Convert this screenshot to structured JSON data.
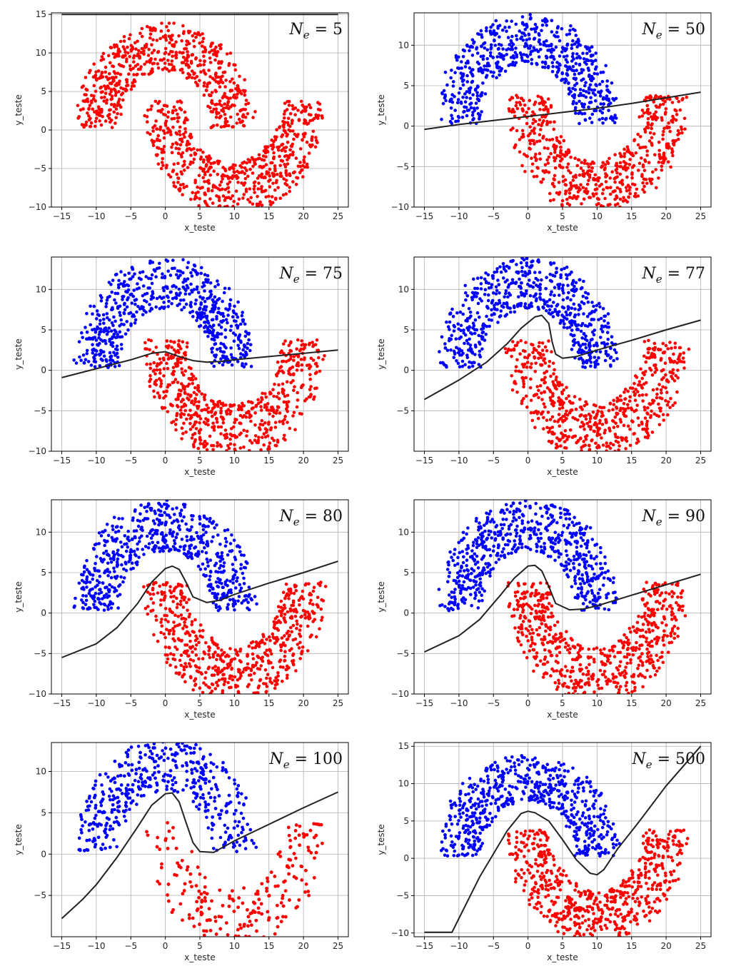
{
  "chart_data": [
    {
      "type": "scatter",
      "annotation": {
        "symbol": "N",
        "sub": "e",
        "value": "5"
      },
      "xlabel": "x_teste",
      "ylabel": "y_teste",
      "xlim": [
        -16.5,
        26.5
      ],
      "ylim": [
        -10,
        15.2
      ],
      "xticks": [
        -15,
        -10,
        -5,
        0,
        5,
        10,
        15,
        20,
        25
      ],
      "yticks": [
        -10,
        -5,
        0,
        5,
        10,
        15
      ],
      "grid": true,
      "classes": {
        "upper_moon": "red",
        "lower_moon": "red"
      },
      "moon_colors": {
        "upper": "#ff0000",
        "lower": "#ff0000"
      },
      "boundary": {
        "x": [
          -15,
          25
        ],
        "y": [
          15,
          15
        ]
      }
    },
    {
      "type": "scatter",
      "annotation": {
        "symbol": "N",
        "sub": "e",
        "value": "50"
      },
      "xlabel": "x_teste",
      "ylabel": "y_teste",
      "xlim": [
        -16.5,
        26.5
      ],
      "ylim": [
        -10,
        14
      ],
      "xticks": [
        -15,
        -10,
        -5,
        0,
        5,
        10,
        15,
        20,
        25
      ],
      "yticks": [
        -10,
        -5,
        0,
        5,
        10
      ],
      "grid": true,
      "classes": {
        "upper_moon": "blue",
        "lower_moon": "red"
      },
      "moon_colors": {
        "upper": "#0000ff",
        "lower": "#ff0000"
      },
      "boundary": {
        "x": [
          -15,
          -10,
          -5,
          0,
          5,
          10,
          15,
          20,
          25
        ],
        "y": [
          -0.4,
          0.2,
          0.7,
          1.2,
          1.7,
          2.2,
          2.8,
          3.5,
          4.2
        ]
      }
    },
    {
      "type": "scatter",
      "annotation": {
        "symbol": "N",
        "sub": "e",
        "value": "75"
      },
      "xlabel": "x_teste",
      "ylabel": "y_teste",
      "xlim": [
        -16.5,
        26.5
      ],
      "ylim": [
        -10,
        14
      ],
      "xticks": [
        -15,
        -10,
        -5,
        0,
        5,
        10,
        15,
        20,
        25
      ],
      "yticks": [
        -10,
        -5,
        0,
        5,
        10
      ],
      "grid": true,
      "classes": {
        "upper_moon": "blue",
        "lower_moon": "red"
      },
      "moon_colors": {
        "upper": "#0000ff",
        "lower": "#ff0000"
      },
      "boundary": {
        "x": [
          -15,
          -10,
          -5,
          -2,
          0,
          2,
          4,
          6,
          8,
          10,
          15,
          20,
          25
        ],
        "y": [
          -0.9,
          0.2,
          1.3,
          2.1,
          2.3,
          1.7,
          1.2,
          1.0,
          1.1,
          1.3,
          1.7,
          2.1,
          2.5
        ]
      }
    },
    {
      "type": "scatter",
      "annotation": {
        "symbol": "N",
        "sub": "e",
        "value": "77"
      },
      "xlabel": "x_teste",
      "ylabel": "y_teste",
      "xlim": [
        -16.5,
        26.5
      ],
      "ylim": [
        -10,
        14
      ],
      "xticks": [
        -15,
        -10,
        -5,
        0,
        5,
        10,
        15,
        20,
        25
      ],
      "yticks": [
        -5,
        0,
        5,
        10
      ],
      "grid": true,
      "classes": {
        "upper_moon": "blue",
        "lower_moon": "red"
      },
      "moon_colors": {
        "upper": "#0000ff",
        "lower": "#ff0000"
      },
      "boundary": {
        "x": [
          -15,
          -10,
          -6,
          -3,
          -1,
          1,
          2,
          3,
          3.5,
          4,
          5,
          7,
          10,
          15,
          20,
          25
        ],
        "y": [
          -3.6,
          -1.2,
          1.0,
          3.3,
          5.2,
          6.6,
          6.8,
          5.8,
          3.5,
          2.0,
          1.5,
          1.7,
          2.5,
          3.7,
          5.0,
          6.2
        ]
      }
    },
    {
      "type": "scatter",
      "annotation": {
        "symbol": "N",
        "sub": "e",
        "value": "80"
      },
      "xlabel": "x_teste",
      "ylabel": "y_teste",
      "xlim": [
        -16.5,
        26.5
      ],
      "ylim": [
        -10,
        14
      ],
      "xticks": [
        -15,
        -10,
        -5,
        0,
        5,
        10,
        15,
        20,
        25
      ],
      "yticks": [
        -10,
        -5,
        0,
        5,
        10
      ],
      "grid": true,
      "classes": {
        "upper_moon": "blue",
        "lower_moon": "red"
      },
      "moon_colors": {
        "upper": "#0000ff",
        "lower": "#ff0000"
      },
      "boundary": {
        "x": [
          -15,
          -10,
          -7,
          -4,
          -2,
          0,
          1,
          2,
          3,
          4,
          6,
          8,
          10,
          15,
          20,
          25
        ],
        "y": [
          -5.5,
          -3.8,
          -1.8,
          1.2,
          3.8,
          5.5,
          5.8,
          5.4,
          3.8,
          2.0,
          1.3,
          1.6,
          2.3,
          3.7,
          5.0,
          6.4
        ]
      }
    },
    {
      "type": "scatter",
      "annotation": {
        "symbol": "N",
        "sub": "e",
        "value": "90"
      },
      "xlabel": "x_teste",
      "ylabel": "y_teste",
      "xlim": [
        -16.5,
        26.5
      ],
      "ylim": [
        -10,
        14
      ],
      "xticks": [
        -15,
        -10,
        -5,
        0,
        5,
        10,
        15,
        20,
        25
      ],
      "yticks": [
        -10,
        -5,
        0,
        5,
        10
      ],
      "grid": true,
      "classes": {
        "upper_moon": "blue",
        "lower_moon": "red"
      },
      "moon_colors": {
        "upper": "#0000ff",
        "lower": "#ff0000"
      },
      "boundary": {
        "x": [
          -15,
          -10,
          -7,
          -4,
          -2,
          0,
          1,
          2,
          3,
          4,
          6,
          8,
          10,
          15,
          20,
          25
        ],
        "y": [
          -4.8,
          -2.8,
          -0.8,
          2.2,
          4.3,
          5.8,
          5.9,
          5.2,
          3.3,
          1.2,
          0.4,
          0.5,
          0.9,
          2.2,
          3.5,
          4.8
        ]
      }
    },
    {
      "type": "scatter",
      "annotation": {
        "symbol": "N",
        "sub": "e",
        "value": "100"
      },
      "xlabel": "x_teste",
      "ylabel": "y_teste",
      "xlim": [
        -16.5,
        26.5
      ],
      "ylim": [
        -10,
        13.5
      ],
      "xticks": [
        -15,
        -10,
        -5,
        0,
        5,
        10,
        15,
        20,
        25
      ],
      "yticks": [
        -5,
        0,
        5,
        10
      ],
      "grid": true,
      "classes": {
        "upper_moon": "blue",
        "lower_moon": "red"
      },
      "moon_colors": {
        "upper": "#0000ff",
        "lower": "#ff0000"
      },
      "boundary": {
        "x": [
          -15,
          -12,
          -10,
          -7,
          -4,
          -2,
          0,
          1,
          2,
          3,
          4,
          5,
          7,
          10,
          15,
          20,
          25
        ],
        "y": [
          -7.8,
          -5.5,
          -3.7,
          -0.4,
          3.3,
          5.9,
          7.3,
          7.4,
          6.3,
          3.8,
          1.4,
          0.3,
          0.2,
          1.6,
          3.6,
          5.6,
          7.5
        ]
      }
    },
    {
      "type": "scatter",
      "annotation": {
        "symbol": "N",
        "sub": "e",
        "value": "500"
      },
      "xlabel": "x_teste",
      "ylabel": "y_teste",
      "xlim": [
        -16.5,
        26.5
      ],
      "ylim": [
        -10.5,
        15.5
      ],
      "xticks": [
        -15,
        -10,
        -5,
        0,
        5,
        10,
        15,
        20,
        25
      ],
      "yticks": [
        -10,
        -5,
        0,
        5,
        10,
        15
      ],
      "grid": true,
      "classes": {
        "upper_moon": "blue",
        "lower_moon": "red"
      },
      "moon_colors": {
        "upper": "#0000ff",
        "lower": "#ff0000"
      },
      "boundary": {
        "x": [
          -15,
          -11,
          -7,
          -3,
          -1,
          0,
          1,
          3,
          5,
          7,
          9,
          10,
          11,
          13,
          16,
          20,
          25
        ],
        "y": [
          -9.9,
          -9.9,
          -2.5,
          3.7,
          6.0,
          6.3,
          6.1,
          5.0,
          2.5,
          -0.2,
          -2.0,
          -2.2,
          -1.5,
          1.3,
          4.8,
          9.7,
          15.0
        ]
      }
    }
  ]
}
